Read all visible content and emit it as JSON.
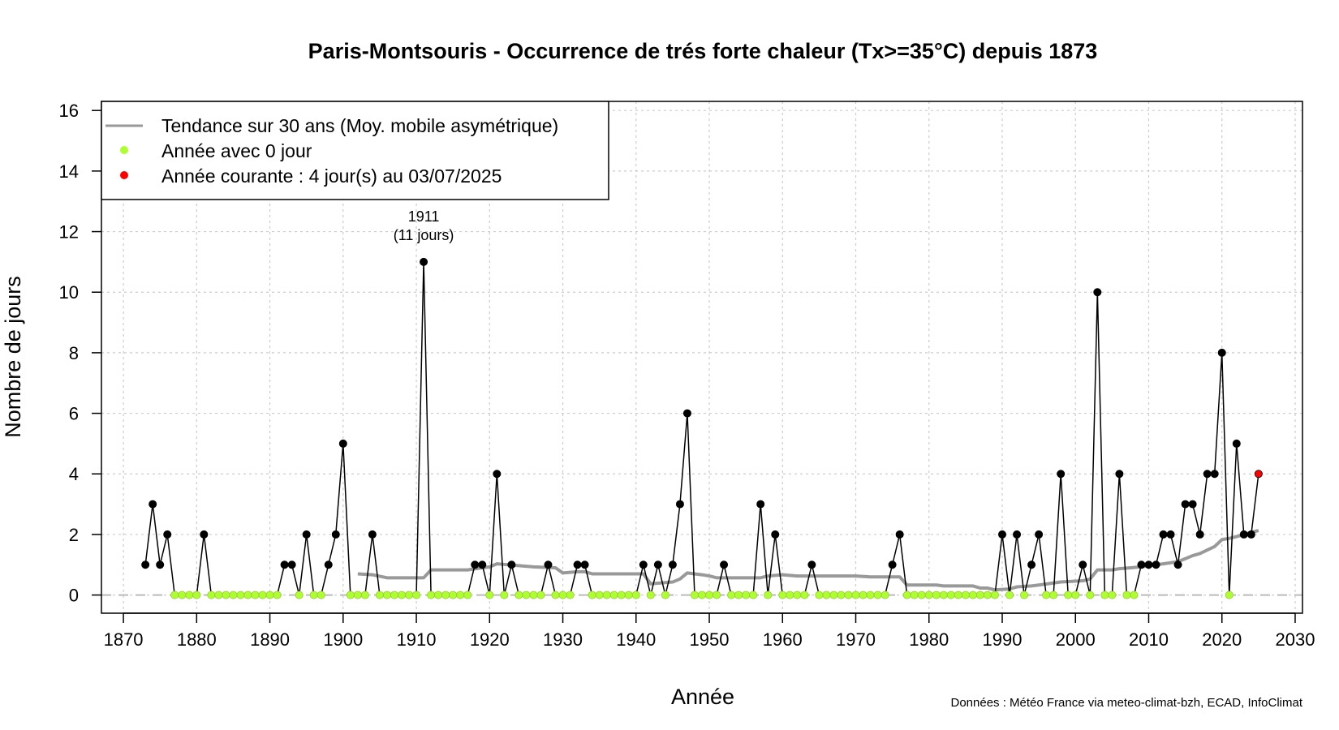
{
  "chart_data": {
    "type": "line",
    "title": "Paris-Montsouris - Occurrence de trés forte chaleur (Tx>=35°C) depuis 1873",
    "xlabel": "Année",
    "ylabel": "Nombre de jours",
    "xlim": [
      1867,
      2031
    ],
    "ylim": [
      -0.6,
      16.3
    ],
    "x_ticks": [
      1870,
      1880,
      1890,
      1900,
      1910,
      1920,
      1930,
      1940,
      1950,
      1960,
      1970,
      1980,
      1990,
      2000,
      2010,
      2020,
      2030
    ],
    "y_ticks": [
      0,
      2,
      4,
      6,
      8,
      10,
      12,
      14,
      16
    ],
    "grid": true,
    "legend_position": "top-left",
    "colors": {
      "line": "#000000",
      "zero_point": "#adff2f",
      "current_point": "#ff0000",
      "trend": "#999999",
      "grid": "#cccccc",
      "zero_line": "#bbbbbb"
    },
    "series": [
      {
        "name": "Nombre de jours",
        "points": [
          [
            1873,
            1
          ],
          [
            1874,
            3
          ],
          [
            1875,
            1
          ],
          [
            1876,
            2
          ],
          [
            1877,
            0
          ],
          [
            1878,
            0
          ],
          [
            1879,
            0
          ],
          [
            1880,
            0
          ],
          [
            1881,
            2
          ],
          [
            1882,
            0
          ],
          [
            1883,
            0
          ],
          [
            1884,
            0
          ],
          [
            1885,
            0
          ],
          [
            1886,
            0
          ],
          [
            1887,
            0
          ],
          [
            1888,
            0
          ],
          [
            1889,
            0
          ],
          [
            1890,
            0
          ],
          [
            1891,
            0
          ],
          [
            1892,
            1
          ],
          [
            1893,
            1
          ],
          [
            1894,
            0
          ],
          [
            1895,
            2
          ],
          [
            1896,
            0
          ],
          [
            1897,
            0
          ],
          [
            1898,
            1
          ],
          [
            1899,
            2
          ],
          [
            1900,
            5
          ],
          [
            1901,
            0
          ],
          [
            1902,
            0
          ],
          [
            1903,
            0
          ],
          [
            1904,
            2
          ],
          [
            1905,
            0
          ],
          [
            1906,
            0
          ],
          [
            1907,
            0
          ],
          [
            1908,
            0
          ],
          [
            1909,
            0
          ],
          [
            1910,
            0
          ],
          [
            1911,
            11
          ],
          [
            1912,
            0
          ],
          [
            1913,
            0
          ],
          [
            1914,
            0
          ],
          [
            1915,
            0
          ],
          [
            1916,
            0
          ],
          [
            1917,
            0
          ],
          [
            1918,
            1
          ],
          [
            1919,
            1
          ],
          [
            1920,
            0
          ],
          [
            1921,
            4
          ],
          [
            1922,
            0
          ],
          [
            1923,
            1
          ],
          [
            1924,
            0
          ],
          [
            1925,
            0
          ],
          [
            1926,
            0
          ],
          [
            1927,
            0
          ],
          [
            1928,
            1
          ],
          [
            1929,
            0
          ],
          [
            1930,
            0
          ],
          [
            1931,
            0
          ],
          [
            1932,
            1
          ],
          [
            1933,
            1
          ],
          [
            1934,
            0
          ],
          [
            1935,
            0
          ],
          [
            1936,
            0
          ],
          [
            1937,
            0
          ],
          [
            1938,
            0
          ],
          [
            1939,
            0
          ],
          [
            1940,
            0
          ],
          [
            1941,
            1
          ],
          [
            1942,
            0
          ],
          [
            1943,
            1
          ],
          [
            1944,
            0
          ],
          [
            1945,
            1
          ],
          [
            1946,
            3
          ],
          [
            1947,
            6
          ],
          [
            1948,
            0
          ],
          [
            1949,
            0
          ],
          [
            1950,
            0
          ],
          [
            1951,
            0
          ],
          [
            1952,
            1
          ],
          [
            1953,
            0
          ],
          [
            1954,
            0
          ],
          [
            1955,
            0
          ],
          [
            1956,
            0
          ],
          [
            1957,
            3
          ],
          [
            1958,
            0
          ],
          [
            1959,
            2
          ],
          [
            1960,
            0
          ],
          [
            1961,
            0
          ],
          [
            1962,
            0
          ],
          [
            1963,
            0
          ],
          [
            1964,
            1
          ],
          [
            1965,
            0
          ],
          [
            1966,
            0
          ],
          [
            1967,
            0
          ],
          [
            1968,
            0
          ],
          [
            1969,
            0
          ],
          [
            1970,
            0
          ],
          [
            1971,
            0
          ],
          [
            1972,
            0
          ],
          [
            1973,
            0
          ],
          [
            1974,
            0
          ],
          [
            1975,
            1
          ],
          [
            1976,
            2
          ],
          [
            1977,
            0
          ],
          [
            1978,
            0
          ],
          [
            1979,
            0
          ],
          [
            1980,
            0
          ],
          [
            1981,
            0
          ],
          [
            1982,
            0
          ],
          [
            1983,
            0
          ],
          [
            1984,
            0
          ],
          [
            1985,
            0
          ],
          [
            1986,
            0
          ],
          [
            1987,
            0
          ],
          [
            1988,
            0
          ],
          [
            1989,
            0
          ],
          [
            1990,
            2
          ],
          [
            1991,
            0
          ],
          [
            1992,
            2
          ],
          [
            1993,
            0
          ],
          [
            1994,
            1
          ],
          [
            1995,
            2
          ],
          [
            1996,
            0
          ],
          [
            1997,
            0
          ],
          [
            1998,
            4
          ],
          [
            1999,
            0
          ],
          [
            2000,
            0
          ],
          [
            2001,
            1
          ],
          [
            2002,
            0
          ],
          [
            2003,
            10
          ],
          [
            2004,
            0
          ],
          [
            2005,
            0
          ],
          [
            2006,
            4
          ],
          [
            2007,
            0
          ],
          [
            2008,
            0
          ],
          [
            2009,
            1
          ],
          [
            2010,
            1
          ],
          [
            2011,
            1
          ],
          [
            2012,
            2
          ],
          [
            2013,
            2
          ],
          [
            2014,
            1
          ],
          [
            2015,
            3
          ],
          [
            2016,
            3
          ],
          [
            2017,
            2
          ],
          [
            2018,
            4
          ],
          [
            2019,
            4
          ],
          [
            2020,
            8
          ],
          [
            2021,
            0
          ],
          [
            2022,
            5
          ],
          [
            2023,
            2
          ],
          [
            2024,
            2
          ],
          [
            2025,
            4
          ]
        ]
      },
      {
        "name": "Tendance sur 30 ans (Moy. mobile asymétrique)",
        "points": [
          [
            1902,
            0.7
          ],
          [
            1904,
            0.67
          ],
          [
            1906,
            0.57
          ],
          [
            1910,
            0.57
          ],
          [
            1911,
            0.57
          ],
          [
            1912,
            0.83
          ],
          [
            1917,
            0.83
          ],
          [
            1919,
            0.9
          ],
          [
            1920,
            0.93
          ],
          [
            1921,
            1.03
          ],
          [
            1924,
            0.97
          ],
          [
            1926,
            0.93
          ],
          [
            1929,
            0.9
          ],
          [
            1930,
            0.73
          ],
          [
            1932,
            0.77
          ],
          [
            1933,
            0.77
          ],
          [
            1934,
            0.7
          ],
          [
            1941,
            0.7
          ],
          [
            1942,
            0.37
          ],
          [
            1945,
            0.43
          ],
          [
            1946,
            0.53
          ],
          [
            1947,
            0.73
          ],
          [
            1949,
            0.67
          ],
          [
            1950,
            0.63
          ],
          [
            1951,
            0.57
          ],
          [
            1957,
            0.57
          ],
          [
            1958,
            0.63
          ],
          [
            1960,
            0.67
          ],
          [
            1962,
            0.63
          ],
          [
            1964,
            0.63
          ],
          [
            1970,
            0.63
          ],
          [
            1972,
            0.6
          ],
          [
            1974,
            0.6
          ],
          [
            1976,
            0.6
          ],
          [
            1977,
            0.33
          ],
          [
            1981,
            0.33
          ],
          [
            1982,
            0.3
          ],
          [
            1986,
            0.3
          ],
          [
            1987,
            0.23
          ],
          [
            1988,
            0.23
          ],
          [
            1989,
            0.17
          ],
          [
            1991,
            0.2
          ],
          [
            1992,
            0.27
          ],
          [
            1994,
            0.3
          ],
          [
            1995,
            0.33
          ],
          [
            1998,
            0.43
          ],
          [
            2001,
            0.47
          ],
          [
            2002,
            0.53
          ],
          [
            2003,
            0.83
          ],
          [
            2005,
            0.83
          ],
          [
            2006,
            0.87
          ],
          [
            2009,
            0.93
          ],
          [
            2010,
            0.97
          ],
          [
            2012,
            1.03
          ],
          [
            2014,
            1.1
          ],
          [
            2016,
            1.3
          ],
          [
            2017,
            1.37
          ],
          [
            2019,
            1.6
          ],
          [
            2020,
            1.83
          ],
          [
            2021,
            1.87
          ],
          [
            2022,
            1.93
          ],
          [
            2023,
            2.0
          ],
          [
            2024,
            2.07
          ],
          [
            2025,
            2.13
          ]
        ]
      }
    ],
    "annotations": [
      {
        "x": 1911,
        "y": 11,
        "lines": [
          "1911",
          "(11 jours)"
        ]
      }
    ],
    "legend": {
      "trend_label": "Tendance sur 30 ans (Moy. mobile asymétrique)",
      "zero_label": "Année avec 0 jour",
      "current_label": "Année courante : 4 jour(s) au 03/07/2025"
    },
    "source": "Données : Météo France via meteo-climat-bzh, ECAD, InfoClimat"
  }
}
